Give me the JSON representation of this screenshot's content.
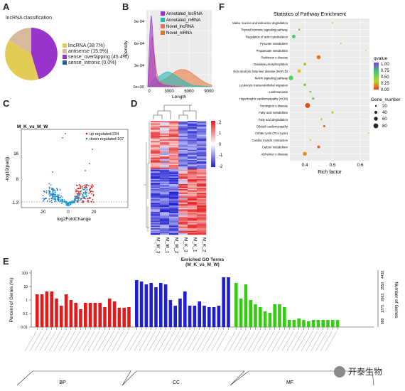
{
  "panels": {
    "a": "A",
    "b": "B",
    "c": "C",
    "d": "D",
    "e": "E",
    "f": "F"
  },
  "colors": {
    "red": "#e31a1c",
    "blue": "#1f1fd0",
    "green": "#33cc11",
    "purple": "#9933cc",
    "teal": "#22bbbb",
    "orange": "#e87030",
    "yellow": "#e3cc55",
    "tan": "#d9b99b",
    "navy": "#2a5aa8"
  },
  "panel_a": {
    "title": "lncRNA classification",
    "legend": [
      {
        "label": "lincRNA (38.7%)",
        "color": "#e3cc55"
      },
      {
        "label": "antisense (15.9%)",
        "color": "#d9b99b"
      },
      {
        "label": "sense_overlapping (45.4%)",
        "color": "#9933cc"
      },
      {
        "label": "sense_intronic (0.0%)",
        "color": "#2a5aa8"
      }
    ]
  },
  "panel_b": {
    "ylabel": "Density",
    "xlabel": "Length",
    "yticks": [
      "0e+00",
      "3e-04",
      "6e-04",
      "9e-04"
    ],
    "xticks": [
      "0",
      "3000",
      "6000",
      "9000"
    ],
    "legend": [
      {
        "label": "Annotated_lncRNA",
        "color": "#9933cc"
      },
      {
        "label": "Annotated_mRNA",
        "color": "#22bbbb"
      },
      {
        "label": "Novel_lncRNA",
        "color": "#e87070"
      },
      {
        "label": "Novel_mRNA",
        "color": "#e87030"
      }
    ]
  },
  "panel_c": {
    "title": "M_K_vs_M_W",
    "up": "up regulated:334",
    "down": "down regulated:107",
    "ylabel": "-log10(padj)",
    "xlabel": "log2FoldChange",
    "yticks": [
      "1.3",
      "8",
      "16"
    ],
    "xticks": [
      "-20",
      "0",
      "20"
    ]
  },
  "panel_d": {
    "cols": [
      "M_W_3",
      "M_W_1",
      "M_W_2",
      "M_K_3",
      "M_K_1",
      "M_K_2"
    ],
    "scale": [
      "2",
      "1",
      "0",
      "-1",
      "-2"
    ]
  },
  "panel_e": {
    "title": "Enriched GO Terms",
    "subtitle": "(M_K_vs_M_W)",
    "ylabel": "Percent of Genes (%)",
    "ylabel2": "Number of Genes",
    "right_ticks": [
      "888",
      "1775",
      "2663",
      "3550",
      "4438"
    ],
    "groups": [
      "BP",
      "CC",
      "MF"
    ]
  },
  "panel_f": {
    "title": "Statistics of Pathway Enrichment",
    "xlabel": "Rich factor",
    "xticks": [
      "0.4",
      "0.5",
      "0.6"
    ],
    "pathways": [
      "Valine, leucine and isoleucine degradation",
      "Thyroid hormone signaling pathway",
      "Regulation of actin cytoskeleton",
      "Pyruvate metabolism",
      "Propanoate metabolism",
      "Parkinson s disease",
      "Oxidative phosphorylation",
      "Non-alcoholic fatty liver disease (NAFLD)",
      "MAPK signaling pathway",
      "Leukocyte transendothelial migration",
      "Leishmaniasis",
      "Hypertrophic cardiomyopathy (HCM)",
      "Huntington s disease",
      "Fatty acid metabolism",
      "Fatty acid degradation",
      "Dilated cardiomyopathy",
      "Citrate cycle (TCA cycle)",
      "Cardiac muscle contraction",
      "Carbon metabolism",
      "Alzheimer s disease"
    ],
    "qvalue_label": "qvalue",
    "qvalue_ticks": [
      "1.00",
      "0.75",
      "0.50",
      "0.25",
      "0.00"
    ],
    "size_label": "Gene_number",
    "size_ticks": [
      "20",
      "40",
      "60",
      "80"
    ]
  },
  "watermark": "开泰生物"
}
